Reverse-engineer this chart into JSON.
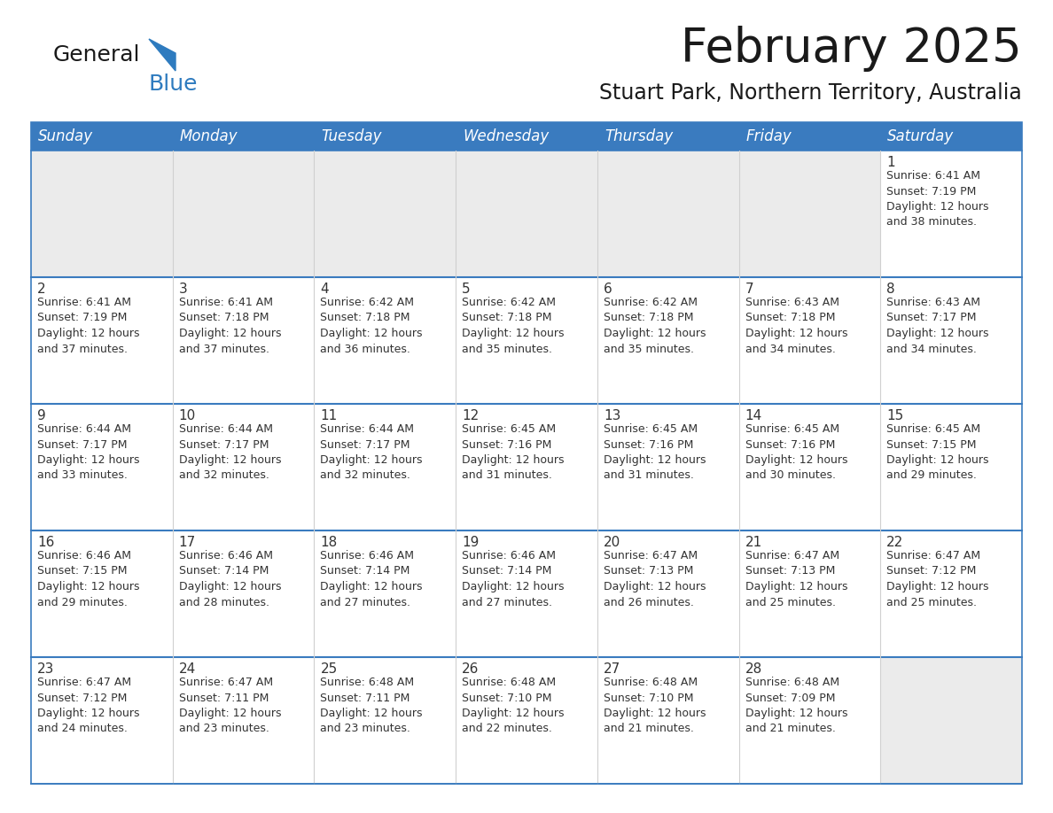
{
  "title": "February 2025",
  "subtitle": "Stuart Park, Northern Territory, Australia",
  "days_of_week": [
    "Sunday",
    "Monday",
    "Tuesday",
    "Wednesday",
    "Thursday",
    "Friday",
    "Saturday"
  ],
  "header_bg": "#3a7bbf",
  "header_text": "#FFFFFF",
  "cell_bg_light": "#ebebeb",
  "cell_bg_white": "#FFFFFF",
  "row_border_color": "#3a7bbf",
  "col_border_color": "#d0d0d0",
  "text_color": "#333333",
  "title_color": "#1a1a1a",
  "logo_general_color": "#1a1a1a",
  "logo_blue_color": "#2e7bbf",
  "calendar_data": [
    [
      {
        "day": 0,
        "info": ""
      },
      {
        "day": 0,
        "info": ""
      },
      {
        "day": 0,
        "info": ""
      },
      {
        "day": 0,
        "info": ""
      },
      {
        "day": 0,
        "info": ""
      },
      {
        "day": 0,
        "info": ""
      },
      {
        "day": 1,
        "info": "Sunrise: 6:41 AM\nSunset: 7:19 PM\nDaylight: 12 hours\nand 38 minutes."
      }
    ],
    [
      {
        "day": 2,
        "info": "Sunrise: 6:41 AM\nSunset: 7:19 PM\nDaylight: 12 hours\nand 37 minutes."
      },
      {
        "day": 3,
        "info": "Sunrise: 6:41 AM\nSunset: 7:18 PM\nDaylight: 12 hours\nand 37 minutes."
      },
      {
        "day": 4,
        "info": "Sunrise: 6:42 AM\nSunset: 7:18 PM\nDaylight: 12 hours\nand 36 minutes."
      },
      {
        "day": 5,
        "info": "Sunrise: 6:42 AM\nSunset: 7:18 PM\nDaylight: 12 hours\nand 35 minutes."
      },
      {
        "day": 6,
        "info": "Sunrise: 6:42 AM\nSunset: 7:18 PM\nDaylight: 12 hours\nand 35 minutes."
      },
      {
        "day": 7,
        "info": "Sunrise: 6:43 AM\nSunset: 7:18 PM\nDaylight: 12 hours\nand 34 minutes."
      },
      {
        "day": 8,
        "info": "Sunrise: 6:43 AM\nSunset: 7:17 PM\nDaylight: 12 hours\nand 34 minutes."
      }
    ],
    [
      {
        "day": 9,
        "info": "Sunrise: 6:44 AM\nSunset: 7:17 PM\nDaylight: 12 hours\nand 33 minutes."
      },
      {
        "day": 10,
        "info": "Sunrise: 6:44 AM\nSunset: 7:17 PM\nDaylight: 12 hours\nand 32 minutes."
      },
      {
        "day": 11,
        "info": "Sunrise: 6:44 AM\nSunset: 7:17 PM\nDaylight: 12 hours\nand 32 minutes."
      },
      {
        "day": 12,
        "info": "Sunrise: 6:45 AM\nSunset: 7:16 PM\nDaylight: 12 hours\nand 31 minutes."
      },
      {
        "day": 13,
        "info": "Sunrise: 6:45 AM\nSunset: 7:16 PM\nDaylight: 12 hours\nand 31 minutes."
      },
      {
        "day": 14,
        "info": "Sunrise: 6:45 AM\nSunset: 7:16 PM\nDaylight: 12 hours\nand 30 minutes."
      },
      {
        "day": 15,
        "info": "Sunrise: 6:45 AM\nSunset: 7:15 PM\nDaylight: 12 hours\nand 29 minutes."
      }
    ],
    [
      {
        "day": 16,
        "info": "Sunrise: 6:46 AM\nSunset: 7:15 PM\nDaylight: 12 hours\nand 29 minutes."
      },
      {
        "day": 17,
        "info": "Sunrise: 6:46 AM\nSunset: 7:14 PM\nDaylight: 12 hours\nand 28 minutes."
      },
      {
        "day": 18,
        "info": "Sunrise: 6:46 AM\nSunset: 7:14 PM\nDaylight: 12 hours\nand 27 minutes."
      },
      {
        "day": 19,
        "info": "Sunrise: 6:46 AM\nSunset: 7:14 PM\nDaylight: 12 hours\nand 27 minutes."
      },
      {
        "day": 20,
        "info": "Sunrise: 6:47 AM\nSunset: 7:13 PM\nDaylight: 12 hours\nand 26 minutes."
      },
      {
        "day": 21,
        "info": "Sunrise: 6:47 AM\nSunset: 7:13 PM\nDaylight: 12 hours\nand 25 minutes."
      },
      {
        "day": 22,
        "info": "Sunrise: 6:47 AM\nSunset: 7:12 PM\nDaylight: 12 hours\nand 25 minutes."
      }
    ],
    [
      {
        "day": 23,
        "info": "Sunrise: 6:47 AM\nSunset: 7:12 PM\nDaylight: 12 hours\nand 24 minutes."
      },
      {
        "day": 24,
        "info": "Sunrise: 6:47 AM\nSunset: 7:11 PM\nDaylight: 12 hours\nand 23 minutes."
      },
      {
        "day": 25,
        "info": "Sunrise: 6:48 AM\nSunset: 7:11 PM\nDaylight: 12 hours\nand 23 minutes."
      },
      {
        "day": 26,
        "info": "Sunrise: 6:48 AM\nSunset: 7:10 PM\nDaylight: 12 hours\nand 22 minutes."
      },
      {
        "day": 27,
        "info": "Sunrise: 6:48 AM\nSunset: 7:10 PM\nDaylight: 12 hours\nand 21 minutes."
      },
      {
        "day": 28,
        "info": "Sunrise: 6:48 AM\nSunset: 7:09 PM\nDaylight: 12 hours\nand 21 minutes."
      },
      {
        "day": 0,
        "info": ""
      }
    ]
  ],
  "num_rows": 5,
  "num_cols": 7,
  "title_fontsize": 38,
  "subtitle_fontsize": 17,
  "header_fontsize": 12,
  "day_num_fontsize": 11,
  "info_fontsize": 9
}
